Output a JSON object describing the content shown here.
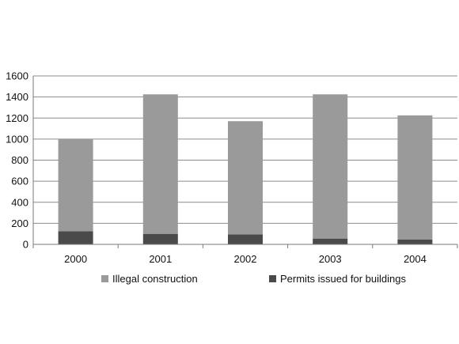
{
  "chart_data": {
    "type": "bar",
    "stacked": true,
    "categories": [
      "2000",
      "2001",
      "2002",
      "2003",
      "2004"
    ],
    "series": [
      {
        "name": "Permits issued for buildings",
        "values": [
          125,
          100,
          95,
          55,
          45
        ],
        "color": "#4a4a4a"
      },
      {
        "name": "Illegal construction",
        "values": [
          875,
          1325,
          1075,
          1370,
          1180
        ],
        "color": "#9a9a9a"
      }
    ],
    "ylim": [
      0,
      1600
    ],
    "yticks": [
      "0",
      "200",
      "400",
      "600",
      "800",
      "1000",
      "1200",
      "1400",
      "1600"
    ],
    "grid": true,
    "legend_position": "bottom",
    "legend_order": [
      "Illegal construction",
      "Permits issued for buildings"
    ],
    "title": "",
    "xlabel": "",
    "ylabel": ""
  }
}
